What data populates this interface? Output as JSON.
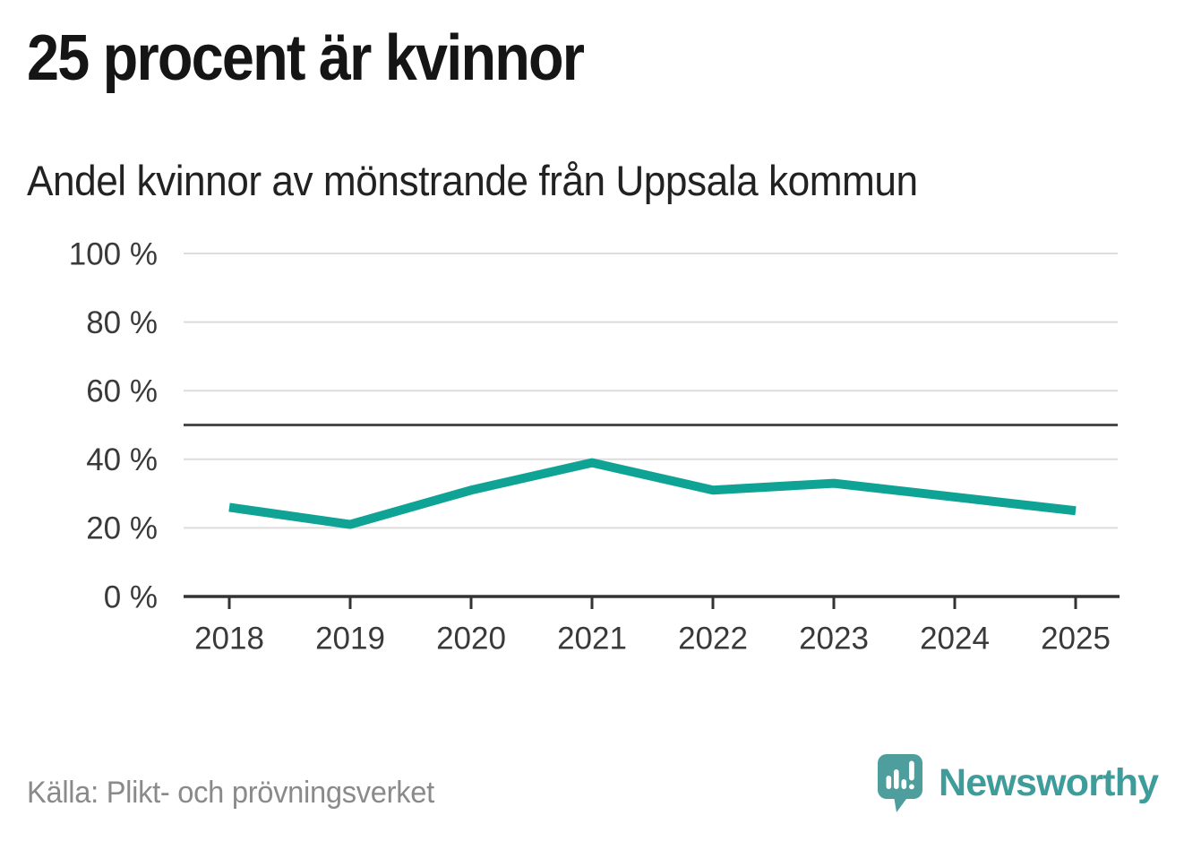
{
  "page": {
    "title": "25 procent är kvinnor",
    "subtitle": "Andel kvinnor av mönstrande från Uppsala kommun",
    "source": "Källa: Plikt- och prövningsverket"
  },
  "branding": {
    "wordmark": "Newsworthy",
    "icon": "newsworthy-logo-icon"
  },
  "colors": {
    "line": "#0FA396",
    "reference": "#4A4A4A",
    "grid": "#DCDCDC",
    "axis": "#333333",
    "tick_text": "#3A3A3A",
    "title_text": "#151515",
    "source_text": "#8A8A8A",
    "brand_teal": "#3E9C9B",
    "icon_teal": "#4D9E9C",
    "icon_glyph": "#FFFFFF"
  },
  "chart_data": {
    "type": "line",
    "title": "25 procent är kvinnor",
    "subtitle": "Andel kvinnor av mönstrande från Uppsala kommun",
    "categories": [
      "2018",
      "2019",
      "2020",
      "2021",
      "2022",
      "2023",
      "2024",
      "2025"
    ],
    "series": [
      {
        "name": "Andel kvinnor av mönstrande",
        "color": "#0FA396",
        "values": [
          26,
          21,
          31,
          39,
          31,
          33,
          29,
          25
        ]
      }
    ],
    "unit": "%",
    "ylim": [
      0,
      100
    ],
    "yticks": [
      0,
      20,
      40,
      60,
      80,
      100
    ],
    "ytick_labels": [
      "0 %",
      "20 %",
      "40 %",
      "60 %",
      "80 %",
      "100 %"
    ],
    "reference_line": {
      "value": 50
    },
    "grid": true,
    "legend": false,
    "source": "Källa: Plikt- och prövningsverket"
  }
}
